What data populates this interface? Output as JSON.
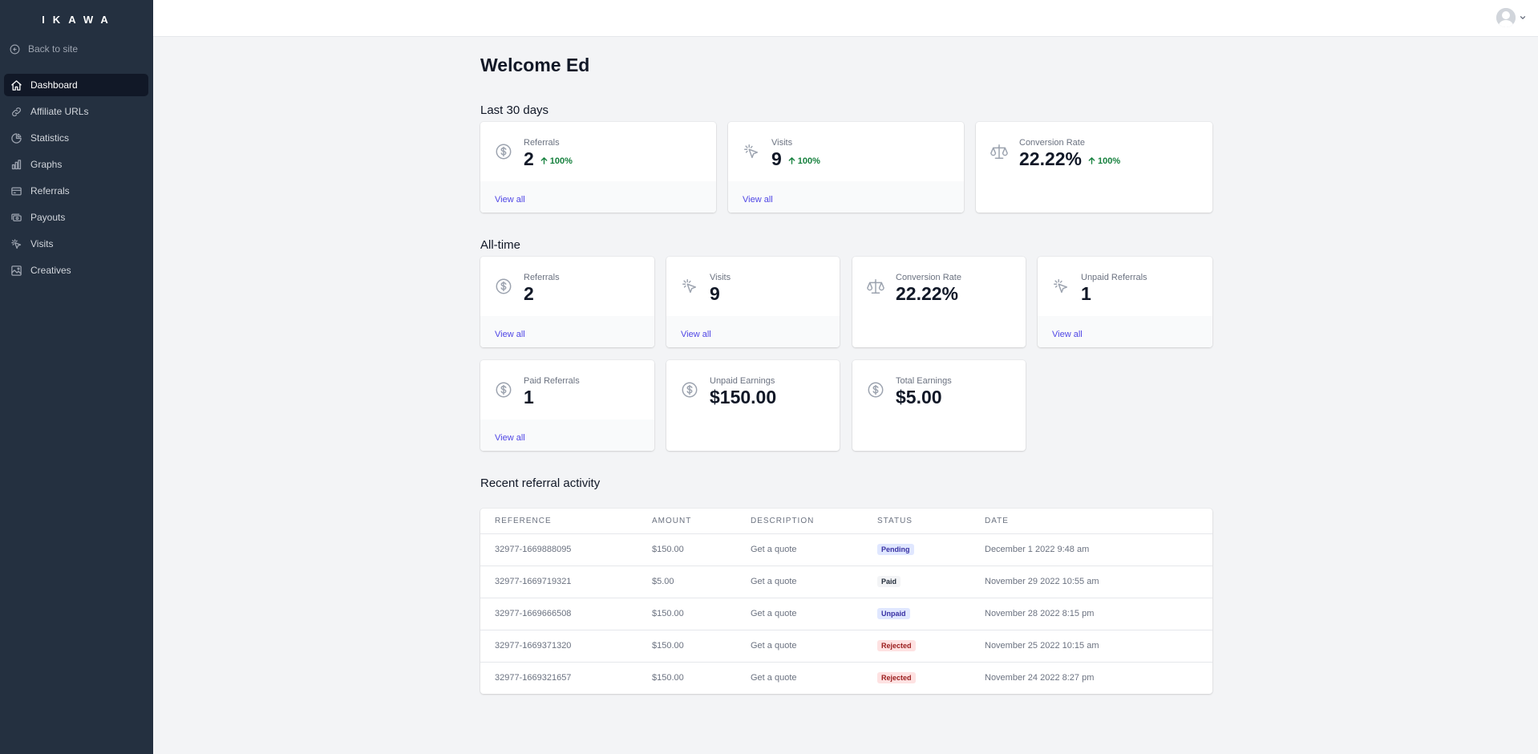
{
  "sidebar": {
    "logo": "IKAWA",
    "back_label": "Back to site",
    "items": [
      {
        "label": "Dashboard",
        "icon": "home-icon"
      },
      {
        "label": "Affiliate URLs",
        "icon": "link-icon"
      },
      {
        "label": "Statistics",
        "icon": "pie-chart-icon"
      },
      {
        "label": "Graphs",
        "icon": "bar-chart-icon"
      },
      {
        "label": "Referrals",
        "icon": "credit-card-icon"
      },
      {
        "label": "Payouts",
        "icon": "cash-icon"
      },
      {
        "label": "Visits",
        "icon": "cursor-click-icon"
      },
      {
        "label": "Creatives",
        "icon": "image-icon"
      }
    ],
    "active": "Dashboard"
  },
  "header": {
    "avatar": "user-avatar"
  },
  "main": {
    "title": "Welcome Ed",
    "last30": {
      "title": "Last 30 days",
      "cards": [
        {
          "label": "Referrals",
          "value": "2",
          "change": "100%",
          "link": "View all",
          "icon": "dollar-circle-icon"
        },
        {
          "label": "Visits",
          "value": "9",
          "change": "100%",
          "link": "View all",
          "icon": "cursor-click-icon"
        },
        {
          "label": "Conversion Rate",
          "value": "22.22%",
          "change": "100%",
          "icon": "scale-icon"
        }
      ]
    },
    "alltime": {
      "title": "All-time",
      "cards": [
        {
          "label": "Referrals",
          "value": "2",
          "link": "View all",
          "icon": "dollar-circle-icon"
        },
        {
          "label": "Visits",
          "value": "9",
          "link": "View all",
          "icon": "cursor-click-icon"
        },
        {
          "label": "Conversion Rate",
          "value": "22.22%",
          "icon": "scale-icon"
        },
        {
          "label": "Unpaid Referrals",
          "value": "1",
          "link": "View all",
          "icon": "cursor-click-icon"
        },
        {
          "label": "Paid Referrals",
          "value": "1",
          "link": "View all",
          "icon": "dollar-circle-icon"
        },
        {
          "label": "Unpaid Earnings",
          "value": "$150.00",
          "icon": "dollar-circle-icon"
        },
        {
          "label": "Total Earnings",
          "value": "$5.00",
          "icon": "dollar-circle-icon"
        }
      ]
    },
    "recent": {
      "title": "Recent referral activity",
      "columns": [
        "REFERENCE",
        "AMOUNT",
        "DESCRIPTION",
        "STATUS",
        "DATE"
      ],
      "rows": [
        {
          "reference": "32977-1669888095",
          "amount": "$150.00",
          "description": "Get a quote",
          "status": "Pending",
          "date": "December 1 2022 9:48 am"
        },
        {
          "reference": "32977-1669719321",
          "amount": "$5.00",
          "description": "Get a quote",
          "status": "Paid",
          "date": "November 29 2022 10:55 am"
        },
        {
          "reference": "32977-1669666508",
          "amount": "$150.00",
          "description": "Get a quote",
          "status": "Unpaid",
          "date": "November 28 2022 8:15 pm"
        },
        {
          "reference": "32977-1669371320",
          "amount": "$150.00",
          "description": "Get a quote",
          "status": "Rejected",
          "date": "November 25 2022 10:15 am"
        },
        {
          "reference": "32977-1669321657",
          "amount": "$150.00",
          "description": "Get a quote",
          "status": "Rejected",
          "date": "November 24 2022 8:27 pm"
        }
      ]
    }
  },
  "colors": {
    "sidebar_bg": "#243040",
    "active_bg": "#111827",
    "link": "#4f46e5",
    "positive": "#15803d",
    "status": {
      "Pending": {
        "bg": "#e0e7ff",
        "fg": "#3730a3"
      },
      "Paid": {
        "bg": "#f3f4f6",
        "fg": "#1f2937"
      },
      "Unpaid": {
        "bg": "#e0e7ff",
        "fg": "#3730a3"
      },
      "Rejected": {
        "bg": "#fee2e2",
        "fg": "#991b1b"
      }
    }
  }
}
